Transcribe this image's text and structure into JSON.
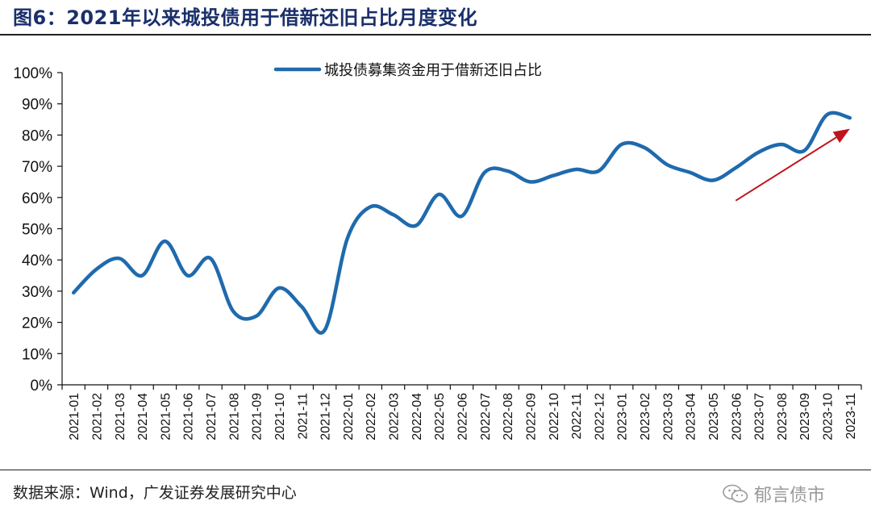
{
  "header": {
    "title": "图6：2021年以来城投债用于借新还旧占比月度变化"
  },
  "footer": {
    "source": "数据来源：Wind，广发证券发展研究中心"
  },
  "watermark": {
    "text": "郁言债市",
    "icon": "wechat-icon"
  },
  "colors": {
    "series": "#1f6aad",
    "arrow": "#c0141c",
    "title": "#1a2f6b"
  },
  "chart_data": {
    "type": "line",
    "title": "",
    "xlabel": "",
    "ylabel": "",
    "ylim": [
      0,
      100
    ],
    "yticks": [
      "0%",
      "10%",
      "20%",
      "30%",
      "40%",
      "50%",
      "60%",
      "70%",
      "80%",
      "90%",
      "100%"
    ],
    "legend_position": "top",
    "grid": false,
    "categories": [
      "2021-01",
      "2021-02",
      "2021-03",
      "2021-04",
      "2021-05",
      "2021-06",
      "2021-07",
      "2021-08",
      "2021-09",
      "2021-10",
      "2021-11",
      "2021-12",
      "2022-01",
      "2022-02",
      "2022-03",
      "2022-04",
      "2022-05",
      "2022-06",
      "2022-07",
      "2022-08",
      "2022-09",
      "2022-10",
      "2022-11",
      "2022-12",
      "2023-01",
      "2023-02",
      "2023-03",
      "2023-04",
      "2023-05",
      "2023-06",
      "2023-07",
      "2023-08",
      "2023-09",
      "2023-10",
      "2023-11"
    ],
    "series": [
      {
        "name": "城投债募集资金用于借新还旧占比",
        "values": [
          29.5,
          37,
          40.5,
          35,
          46,
          35,
          40.5,
          23.5,
          22,
          31,
          25,
          17.5,
          47,
          57,
          54.5,
          51,
          61,
          54,
          68,
          68.5,
          65,
          67,
          69,
          68.5,
          77,
          76,
          70.5,
          68,
          65.5,
          69.5,
          74.5,
          77,
          75,
          86.5,
          85.5
        ]
      }
    ],
    "annotations": [
      {
        "type": "arrow",
        "from_x": "2023-06",
        "from_y": 59,
        "to_x": "2023-11",
        "to_y": 82
      }
    ]
  }
}
